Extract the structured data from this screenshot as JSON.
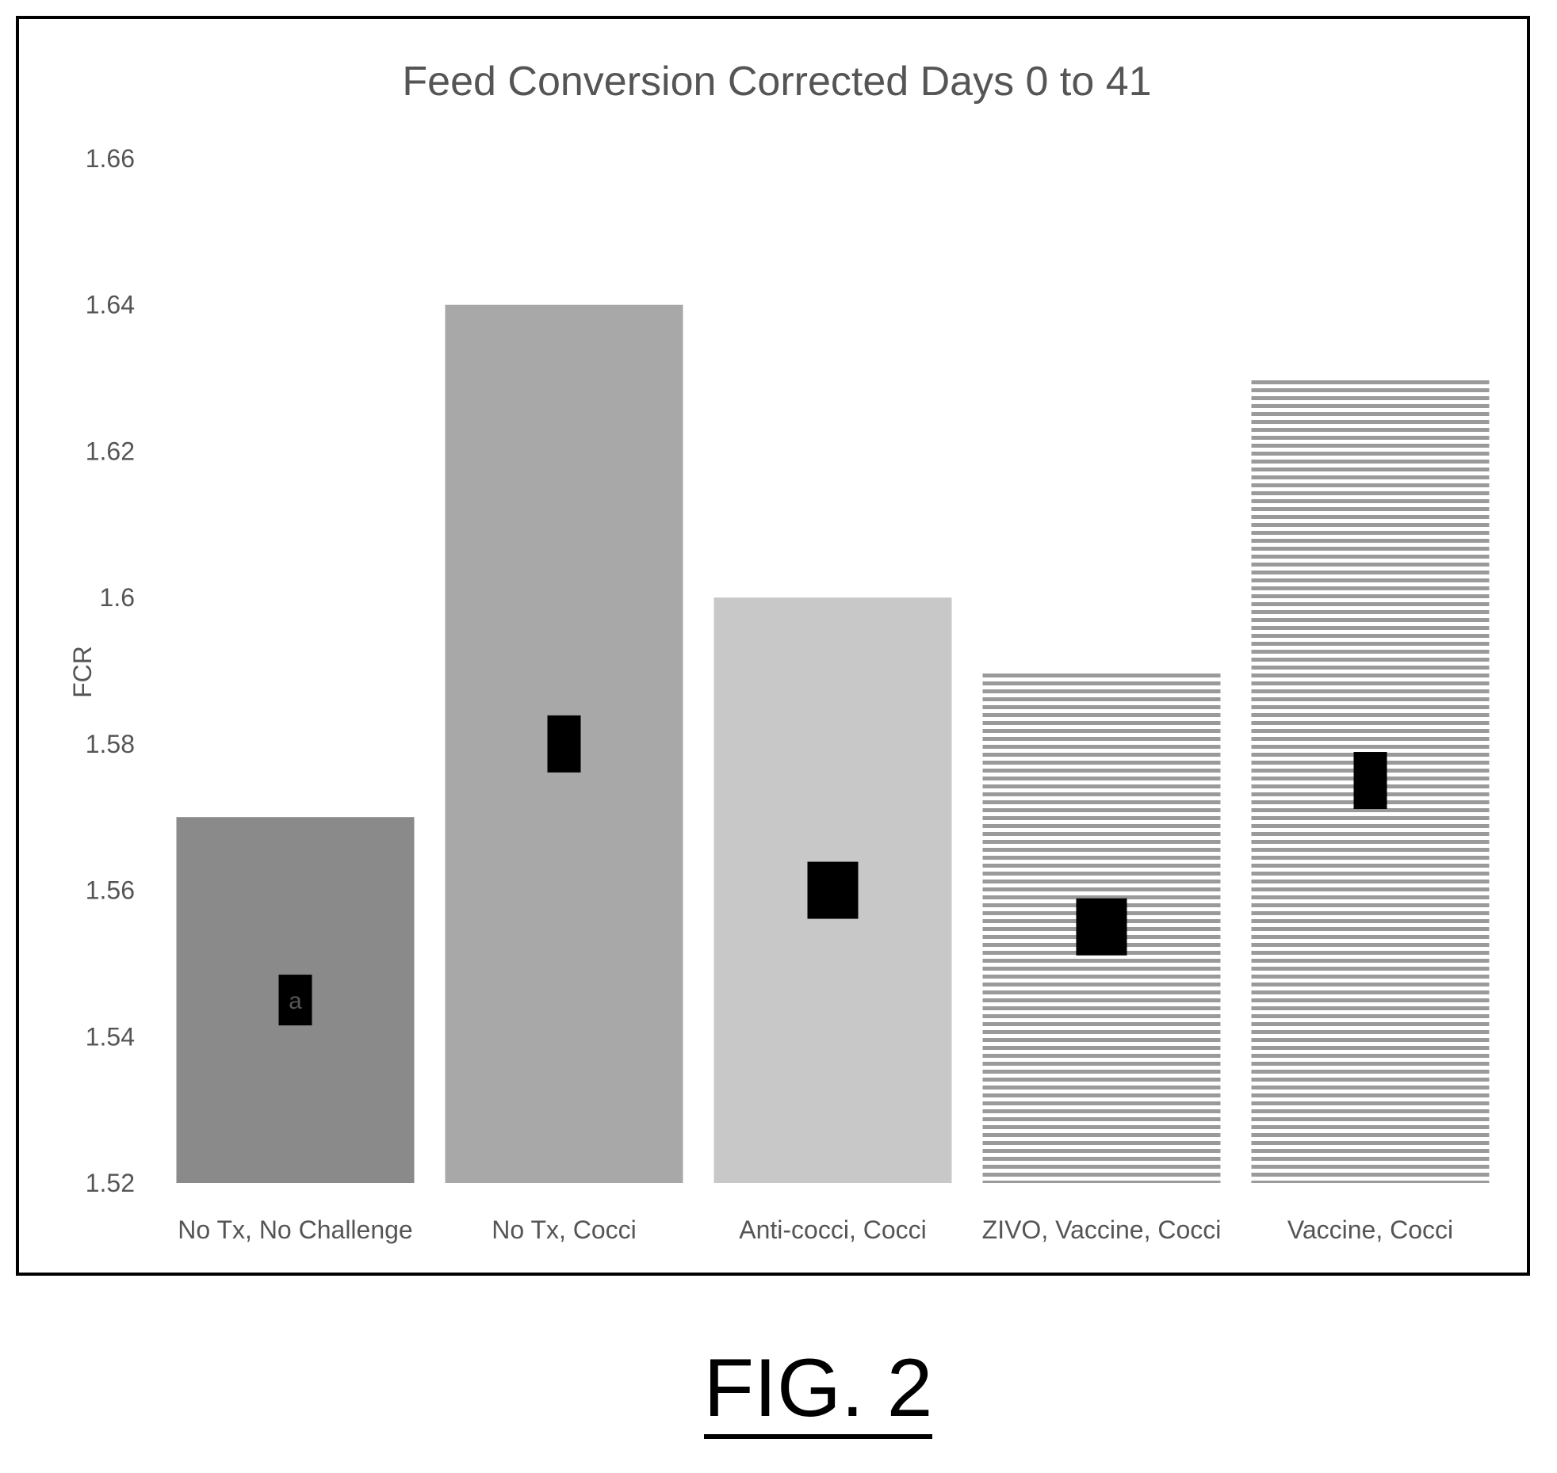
{
  "chart_data": {
    "type": "bar",
    "title": "Feed Conversion Corrected Days 0 to 41",
    "ylabel": "FCR",
    "xlabel": "",
    "ylim": [
      1.52,
      1.66
    ],
    "yticks": [
      "1.52",
      "1.54",
      "1.56",
      "1.58",
      "1.6",
      "1.62",
      "1.64",
      "1.66"
    ],
    "categories": [
      "No Tx, No Challenge",
      "No Tx, Cocci",
      "Anti-cocci, Cocci",
      "ZIVO, Vaccine, Cocci",
      "Vaccine, Cocci"
    ],
    "values": [
      1.57,
      1.64,
      1.6,
      1.59,
      1.63
    ],
    "bar_labels": [
      "a",
      "",
      "",
      "",
      ""
    ],
    "label_positions": [
      1.545,
      1.58,
      1.56,
      1.555,
      1.575
    ],
    "fills": [
      "#8a8a8a",
      "#a8a8a8",
      "#c8c8c8",
      "stripes",
      "stripes"
    ],
    "grid": false,
    "legend": "none"
  },
  "figure": {
    "caption": "FIG. 2"
  }
}
